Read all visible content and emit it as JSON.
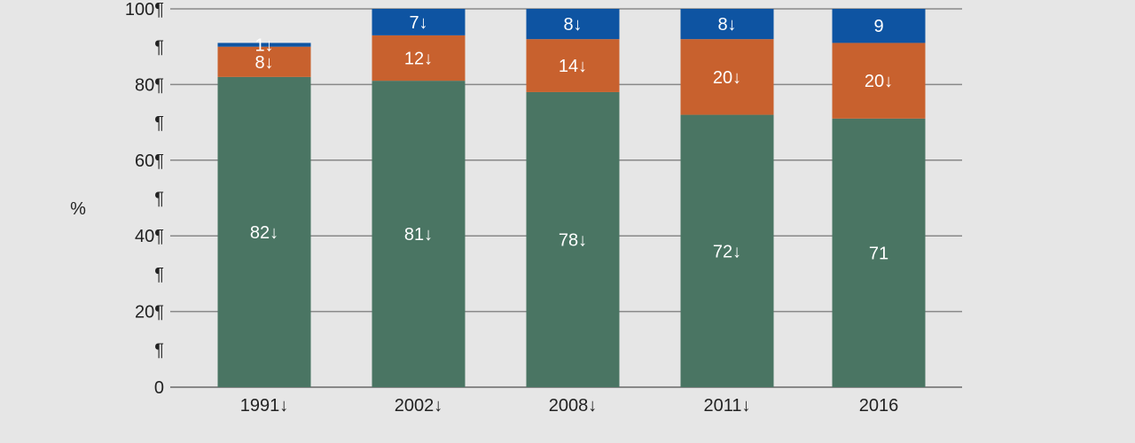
{
  "chart_data": {
    "type": "bar",
    "stacked": true,
    "categories": [
      "1991↓",
      "2002↓",
      "2008↓",
      "2011↓",
      "2016"
    ],
    "series": [
      {
        "values": [
          82,
          81,
          78,
          72,
          71
        ],
        "labels": [
          "82↓",
          "81↓",
          "78↓",
          "72↓",
          "71"
        ],
        "color": "#4a7563"
      },
      {
        "values": [
          8,
          12,
          14,
          20,
          20
        ],
        "labels": [
          "8↓",
          "12↓",
          "14↓",
          "20↓",
          "20↓"
        ],
        "color": "#c8612e"
      },
      {
        "values": [
          1,
          7,
          8,
          8,
          9
        ],
        "labels": [
          "1↓",
          "7↓",
          "8↓",
          "8↓",
          "9"
        ],
        "color": "#0e54a2"
      }
    ],
    "ylabel": "%",
    "ylim": [
      0,
      100
    ],
    "y_ticks": [
      "0",
      "¶",
      "20¶",
      "¶",
      "40¶",
      "¶",
      "60¶",
      "¶",
      "80¶",
      "¶",
      "100¶"
    ],
    "grid": true,
    "legend": "none",
    "colors": {
      "background": "#e6e6e6",
      "gridline": "#888888"
    }
  }
}
